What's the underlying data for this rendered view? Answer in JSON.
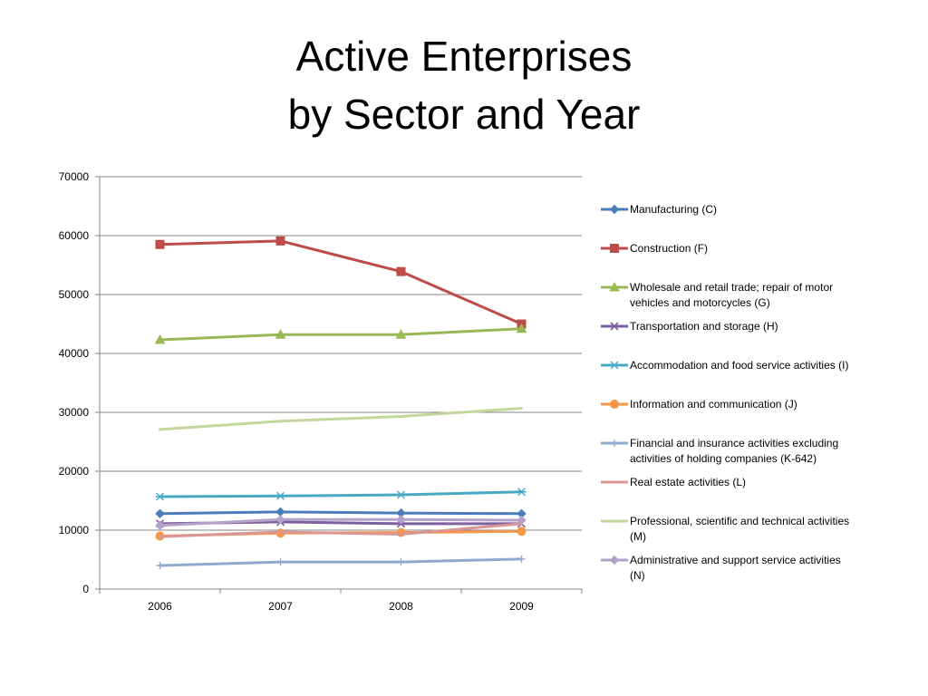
{
  "slide": {
    "title_line1": "Active Enterprises",
    "title_line2": "by Sector and Year"
  },
  "chart_data": {
    "type": "line",
    "title": "Active Enterprises by Sector and Year",
    "xlabel": "",
    "ylabel": "",
    "categories": [
      "2006",
      "2007",
      "2008",
      "2009"
    ],
    "ylim": [
      0,
      70000
    ],
    "yticks": [
      0,
      10000,
      20000,
      30000,
      40000,
      50000,
      60000,
      70000
    ],
    "grid": true,
    "legend_position": "right",
    "series": [
      {
        "name": "Manufacturing (C)",
        "label_lines": [
          "Manufacturing (C)"
        ],
        "color": "#4A7EBB",
        "marker": "diamond",
        "values": [
          12800,
          13100,
          12900,
          12800
        ]
      },
      {
        "name": "Construction (F)",
        "label_lines": [
          "Construction (F)"
        ],
        "color": "#BE4B48",
        "marker": "square",
        "values": [
          58500,
          59100,
          53900,
          45000
        ]
      },
      {
        "name": "Wholesale and retail trade; repair of motor vehicles and motorcycles (G)",
        "label_lines": [
          "Wholesale and retail trade; repair of motor",
          "vehicles and motorcycles (G)"
        ],
        "color": "#98B954",
        "marker": "triangle",
        "values": [
          42300,
          43200,
          43200,
          44200
        ]
      },
      {
        "name": "Transportation and storage (H)",
        "label_lines": [
          "Transportation and storage (H)"
        ],
        "color": "#7D60A0",
        "marker": "x",
        "values": [
          11100,
          11400,
          11100,
          11100
        ]
      },
      {
        "name": "Accommodation and food service activities (I)",
        "label_lines": [
          "Accommodation and food service activities (I)"
        ],
        "color": "#46AAC5",
        "marker": "star",
        "values": [
          15700,
          15800,
          16000,
          16500
        ]
      },
      {
        "name": "Information and communication (J)",
        "label_lines": [
          "Information and communication (J)"
        ],
        "color": "#F79646",
        "marker": "circle",
        "values": [
          9000,
          9500,
          9600,
          9800
        ]
      },
      {
        "name": "Financial and insurance activities excluding activities of holding companies (K-642)",
        "label_lines": [
          "Financial and insurance activities excluding",
          "activities of holding companies (K-642)"
        ],
        "color": "#92A9CF",
        "marker": "plus",
        "values": [
          4000,
          4600,
          4600,
          5100
        ]
      },
      {
        "name": "Real estate activities (L)",
        "label_lines": [
          "Real estate activities (L)"
        ],
        "color": "#D99694",
        "marker": "none",
        "values": [
          8900,
          9700,
          9300,
          11100
        ]
      },
      {
        "name": "Professional, scientific and technical activities (M)",
        "label_lines": [
          "Professional, scientific and technical activities",
          "(M)"
        ],
        "color": "#C3D69B",
        "marker": "none",
        "values": [
          27100,
          28500,
          29300,
          30700
        ]
      },
      {
        "name": "Administrative and support service activities (N)",
        "label_lines": [
          "Administrative and support service activities",
          "(N)"
        ],
        "color": "#B3A2C7",
        "marker": "diamond",
        "values": [
          10800,
          11800,
          11800,
          11700
        ]
      }
    ]
  }
}
